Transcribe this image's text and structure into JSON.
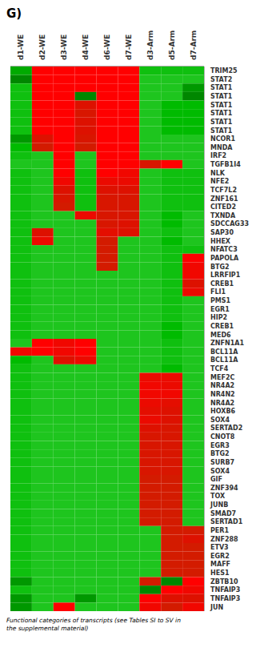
{
  "chart_data": {
    "type": "heatmap",
    "title": "G)",
    "caption": "Functional categories of transcripts (see Tables SI to SV in\nthe supplemental material)",
    "columns": [
      "d1-WE",
      "d2-WE",
      "d3-WE",
      "d4-WE",
      "d6-WE",
      "d7-WE",
      "d3-Arm",
      "d5-Arm",
      "d7-Arm"
    ],
    "rows": [
      "TRIM25",
      "STAT2",
      "STAT1",
      "STAT1",
      "STAT1",
      "STAT1",
      "STAT1",
      "STAT1",
      "NCOR1",
      "MNDA",
      "IRF2",
      "TGFB1I4",
      "NLK",
      "NFE2",
      "TCF7L2",
      "ZNF161",
      "CITED2",
      "TXNDA",
      "SDCCAG33",
      "SAP30",
      "HHEX",
      "NFATC3",
      "PAPOLA",
      "BTG2",
      "LRRFIP1",
      "CREB1",
      "FLI1",
      "PMS1",
      "EGR1",
      "HIP2",
      "CREB1",
      "MED6",
      "ZNFN1A1",
      "BCL11A",
      "BCL11A",
      "TCF4",
      "MEF2C",
      "NR4A2",
      "NR4N2",
      "NR4A2",
      "HOXB6",
      "SOX4",
      "SERTAD2",
      "CNOT8",
      "EGR3",
      "BTG2",
      "SURB7",
      "SOX4",
      "GIF",
      "ZNF394",
      "TOX",
      "JUNB",
      "SMAD7",
      "SERTAD1",
      "PER1",
      "ZNF288",
      "ETV3",
      "EGR2",
      "MAFF",
      "HES1",
      "ZBTB10",
      "TNFAIP3",
      "TNFAIP3",
      "JUN"
    ],
    "values": [
      [
        -0.6,
        1.0,
        1.0,
        1.0,
        1.0,
        1.0,
        -0.4,
        -0.4,
        -0.4
      ],
      [
        -0.8,
        1.0,
        1.0,
        1.0,
        1.0,
        1.0,
        -0.3,
        -0.3,
        -0.3
      ],
      [
        -0.4,
        1.0,
        1.0,
        1.0,
        1.0,
        1.0,
        -0.3,
        -0.3,
        -0.7
      ],
      [
        -0.4,
        1.0,
        1.0,
        -0.8,
        1.0,
        1.0,
        -0.3,
        -0.3,
        -0.8
      ],
      [
        -0.4,
        1.0,
        1.0,
        0.5,
        1.0,
        1.0,
        -0.3,
        -0.5,
        -0.5
      ],
      [
        -0.4,
        1.0,
        1.0,
        0.4,
        1.0,
        1.0,
        -0.3,
        -0.5,
        -0.5
      ],
      [
        -0.4,
        1.0,
        1.0,
        0.5,
        1.0,
        1.0,
        -0.3,
        -0.5,
        -0.5
      ],
      [
        -0.4,
        1.0,
        1.0,
        0.5,
        1.0,
        1.0,
        -0.3,
        -0.5,
        -0.5
      ],
      [
        -0.7,
        0.5,
        1.0,
        0.4,
        1.0,
        1.0,
        -0.3,
        -0.3,
        -0.3
      ],
      [
        -0.5,
        0.3,
        1.0,
        0.3,
        1.0,
        1.0,
        -0.3,
        -0.3,
        -0.3
      ],
      [
        -0.4,
        -0.3,
        1.0,
        -0.3,
        1.0,
        1.0,
        -0.3,
        -0.3,
        -0.3
      ],
      [
        -0.3,
        -0.3,
        1.0,
        -0.3,
        1.0,
        1.0,
        0.4,
        1.0,
        -0.3
      ],
      [
        -0.4,
        -0.3,
        1.0,
        -0.4,
        1.0,
        0.8,
        -0.3,
        -0.4,
        -0.4
      ],
      [
        -0.4,
        -0.3,
        0.8,
        -0.4,
        0.7,
        0.7,
        -0.3,
        -0.4,
        -0.4
      ],
      [
        -0.4,
        -0.3,
        0.5,
        -0.4,
        0.5,
        0.5,
        -0.3,
        -0.4,
        -0.4
      ],
      [
        -0.4,
        -0.3,
        0.4,
        -0.4,
        0.4,
        0.4,
        -0.3,
        -0.4,
        -0.4
      ],
      [
        -0.4,
        -0.3,
        0.3,
        -0.4,
        0.4,
        0.4,
        -0.3,
        -0.4,
        -0.4
      ],
      [
        -0.4,
        -0.3,
        -0.3,
        0.7,
        0.4,
        0.4,
        -0.3,
        -0.5,
        -0.3
      ],
      [
        -0.4,
        -0.3,
        -0.3,
        -0.3,
        0.4,
        0.5,
        -0.3,
        -0.5,
        -0.3
      ],
      [
        -0.4,
        0.5,
        -0.3,
        -0.3,
        0.6,
        0.5,
        -0.3,
        -0.4,
        -0.3
      ],
      [
        -0.4,
        0.7,
        -0.3,
        -0.3,
        0.3,
        -0.3,
        -0.3,
        -0.5,
        -0.3
      ],
      [
        -0.4,
        -0.3,
        -0.3,
        -0.3,
        0.3,
        -0.3,
        -0.3,
        -0.4,
        -0.4
      ],
      [
        -0.4,
        -0.3,
        -0.3,
        -0.3,
        0.3,
        -0.3,
        -0.3,
        -0.4,
        1.0
      ],
      [
        -0.4,
        -0.3,
        -0.3,
        -0.3,
        0.3,
        -0.3,
        -0.3,
        -0.4,
        0.8
      ],
      [
        -0.4,
        -0.3,
        -0.3,
        -0.3,
        -0.3,
        -0.3,
        -0.3,
        -0.4,
        0.8
      ],
      [
        -0.4,
        -0.3,
        -0.3,
        -0.3,
        -0.3,
        -0.3,
        -0.3,
        -0.4,
        0.5
      ],
      [
        -0.4,
        -0.3,
        -0.3,
        -0.3,
        -0.3,
        -0.3,
        -0.3,
        -0.4,
        0.7
      ],
      [
        -0.4,
        -0.3,
        -0.3,
        -0.3,
        -0.3,
        -0.3,
        -0.3,
        -0.4,
        -0.3
      ],
      [
        -0.4,
        -0.3,
        -0.3,
        -0.3,
        -0.3,
        -0.3,
        -0.3,
        -0.4,
        -0.3
      ],
      [
        -0.4,
        -0.3,
        -0.3,
        -0.3,
        -0.3,
        -0.3,
        -0.3,
        -0.4,
        -0.3
      ],
      [
        -0.4,
        -0.3,
        -0.3,
        -0.3,
        -0.3,
        -0.3,
        -0.3,
        -0.5,
        -0.3
      ],
      [
        -0.4,
        -0.3,
        -0.3,
        -0.3,
        -0.3,
        -0.3,
        -0.3,
        -0.5,
        -0.3
      ],
      [
        -0.3,
        1.0,
        0.8,
        1.0,
        -0.3,
        -0.3,
        -0.3,
        -0.4,
        -0.3
      ],
      [
        0.8,
        1.0,
        0.8,
        1.0,
        -0.3,
        -0.3,
        -0.3,
        -0.4,
        -0.3
      ],
      [
        -0.5,
        -0.3,
        0.5,
        0.7,
        -0.3,
        -0.3,
        -0.3,
        -0.4,
        -0.3
      ],
      [
        -0.4,
        -0.3,
        -0.3,
        -0.3,
        -0.3,
        -0.3,
        -0.3,
        -0.5,
        -0.3
      ],
      [
        -0.4,
        -0.3,
        -0.3,
        -0.3,
        -0.3,
        -0.3,
        0.7,
        0.7,
        -0.3
      ],
      [
        -0.4,
        -0.3,
        -0.3,
        -0.3,
        -0.3,
        -0.3,
        0.8,
        0.7,
        -0.3
      ],
      [
        -0.4,
        -0.3,
        -0.3,
        -0.3,
        -0.3,
        -0.3,
        0.8,
        0.8,
        -0.3
      ],
      [
        -0.4,
        -0.3,
        -0.3,
        -0.3,
        -0.3,
        -0.3,
        0.7,
        0.6,
        -0.3
      ],
      [
        -0.4,
        -0.3,
        -0.3,
        -0.3,
        -0.3,
        -0.3,
        0.6,
        0.5,
        -0.3
      ],
      [
        -0.4,
        -0.3,
        -0.3,
        -0.3,
        -0.3,
        -0.3,
        0.7,
        0.5,
        -0.3
      ],
      [
        -0.4,
        -0.3,
        -0.3,
        -0.3,
        -0.3,
        -0.3,
        0.5,
        0.4,
        -0.3
      ],
      [
        -0.4,
        -0.3,
        -0.3,
        -0.3,
        -0.3,
        -0.3,
        0.4,
        0.4,
        -0.3
      ],
      [
        -0.4,
        -0.3,
        -0.3,
        -0.3,
        -0.3,
        -0.3,
        0.4,
        0.4,
        -0.3
      ],
      [
        -0.4,
        -0.3,
        -0.3,
        -0.3,
        -0.3,
        -0.3,
        0.4,
        0.4,
        -0.3
      ],
      [
        -0.4,
        -0.3,
        -0.3,
        -0.3,
        -0.3,
        -0.3,
        0.4,
        0.4,
        -0.3
      ],
      [
        -0.4,
        -0.3,
        -0.3,
        -0.3,
        -0.3,
        -0.3,
        0.4,
        0.4,
        -0.3
      ],
      [
        -0.4,
        -0.3,
        -0.3,
        -0.3,
        -0.3,
        -0.3,
        0.3,
        0.3,
        -0.3
      ],
      [
        -0.4,
        -0.3,
        -0.3,
        -0.3,
        -0.3,
        -0.3,
        0.3,
        0.3,
        -0.3
      ],
      [
        -0.4,
        -0.3,
        -0.3,
        -0.3,
        -0.3,
        -0.3,
        0.3,
        0.3,
        -0.3
      ],
      [
        -0.4,
        -0.3,
        -0.3,
        -0.3,
        -0.3,
        -0.3,
        0.3,
        0.3,
        -0.3
      ],
      [
        -0.4,
        -0.3,
        -0.3,
        -0.3,
        -0.3,
        -0.3,
        0.3,
        0.3,
        -0.3
      ],
      [
        -0.4,
        -0.3,
        -0.3,
        -0.3,
        -0.3,
        -0.3,
        0.3,
        0.3,
        -0.3
      ],
      [
        -0.4,
        -0.3,
        -0.3,
        -0.3,
        -0.3,
        -0.3,
        -0.3,
        0.3,
        0.3
      ],
      [
        -0.4,
        -0.3,
        -0.3,
        -0.3,
        -0.3,
        -0.3,
        -0.3,
        0.3,
        0.5
      ],
      [
        -0.4,
        -0.3,
        -0.3,
        -0.3,
        -0.3,
        -0.3,
        -0.3,
        0.3,
        0.3
      ],
      [
        -0.4,
        -0.3,
        -0.3,
        -0.3,
        -0.3,
        -0.3,
        -0.3,
        0.3,
        0.3
      ],
      [
        -0.4,
        -0.3,
        -0.3,
        -0.3,
        -0.3,
        -0.3,
        -0.3,
        0.3,
        0.3
      ],
      [
        -0.4,
        -0.3,
        -0.3,
        -0.3,
        -0.3,
        -0.3,
        -0.3,
        0.3,
        0.3
      ],
      [
        -0.7,
        -0.3,
        -0.3,
        -0.3,
        -0.3,
        -0.3,
        0.3,
        -0.8,
        1.0
      ],
      [
        -0.4,
        -0.3,
        -0.3,
        -0.3,
        -0.3,
        -0.3,
        -0.8,
        1.0,
        0.8
      ],
      [
        -0.7,
        -0.3,
        -0.3,
        -0.7,
        -0.3,
        -0.3,
        1.0,
        0.5,
        0.5
      ],
      [
        -0.7,
        -0.3,
        1.0,
        -0.3,
        -0.3,
        -0.3,
        0.8,
        0.3,
        0.8
      ]
    ],
    "color_range": [
      -1,
      1
    ],
    "colormap": [
      "#006400",
      "#00bb00",
      "#33cc33",
      "#227722",
      "#cc2200",
      "#dd1100",
      "#ff0000"
    ]
  }
}
